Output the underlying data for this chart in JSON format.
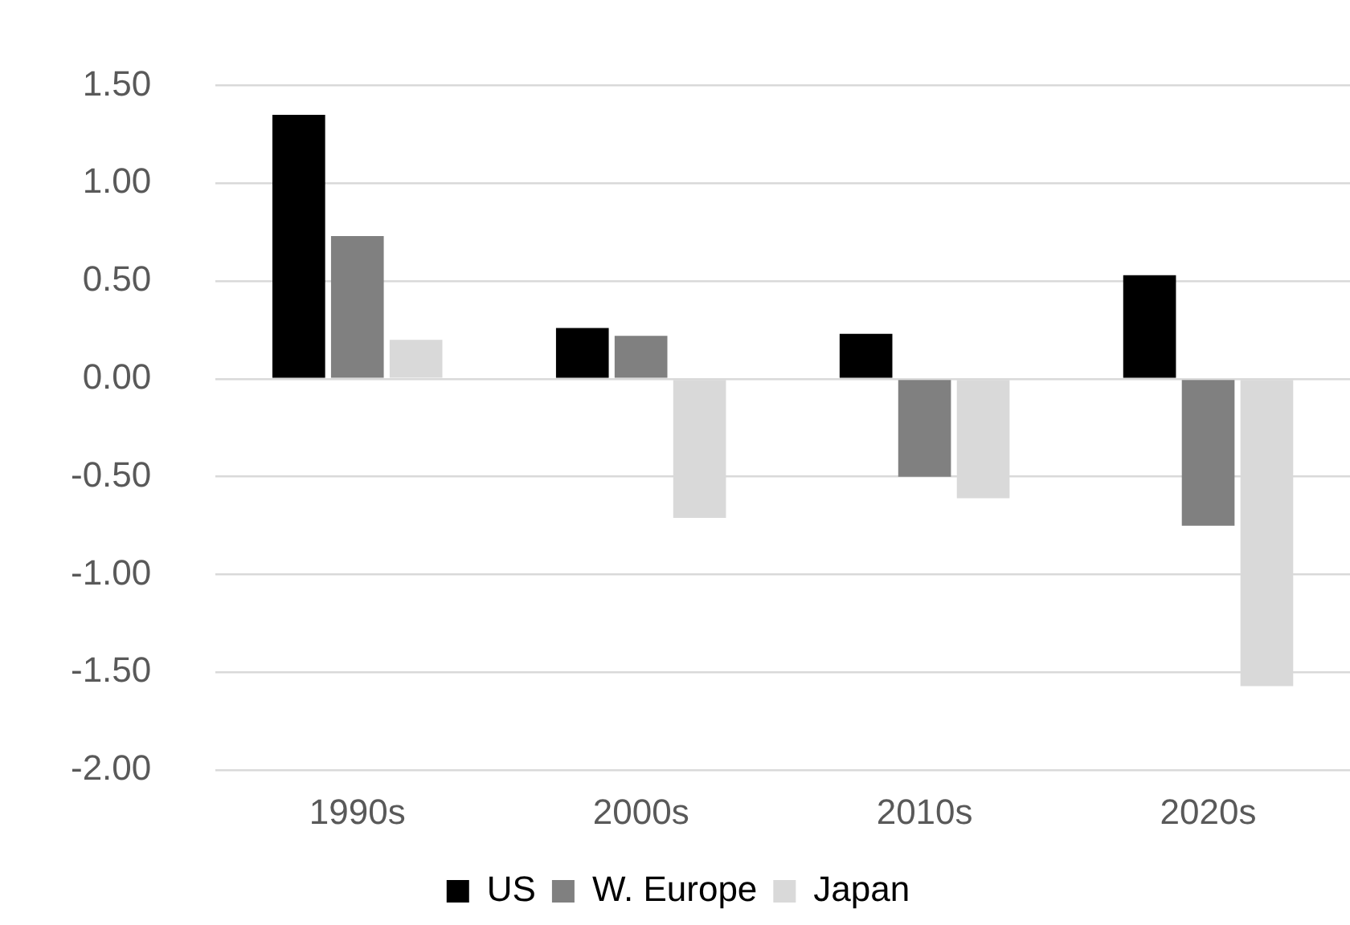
{
  "chart_data": {
    "type": "bar",
    "categories": [
      "1990s",
      "2000s",
      "2010s",
      "2020s"
    ],
    "series": [
      {
        "name": "US",
        "color": "#000000",
        "values": [
          1.35,
          0.26,
          0.23,
          0.53
        ]
      },
      {
        "name": "W. Europe",
        "color": "#808080",
        "values": [
          0.73,
          0.22,
          -0.5,
          -0.75
        ]
      },
      {
        "name": "Japan",
        "color": "#d9d9d9",
        "values": [
          0.2,
          -0.71,
          -0.61,
          -1.57
        ]
      }
    ],
    "ylim": [
      -2,
      1.5
    ],
    "yticks": [
      {
        "value": -2,
        "label": "-2.00"
      },
      {
        "value": -1.5,
        "label": "-1.50"
      },
      {
        "value": -1,
        "label": "-1.00"
      },
      {
        "value": -0.5,
        "label": "-0.50"
      },
      {
        "value": 0,
        "label": "0.00"
      },
      {
        "value": 0.5,
        "label": "0.50"
      },
      {
        "value": 1,
        "label": "1.00"
      },
      {
        "value": 1.5,
        "label": "1.50"
      }
    ],
    "grid": "y",
    "legend": "bottom"
  }
}
